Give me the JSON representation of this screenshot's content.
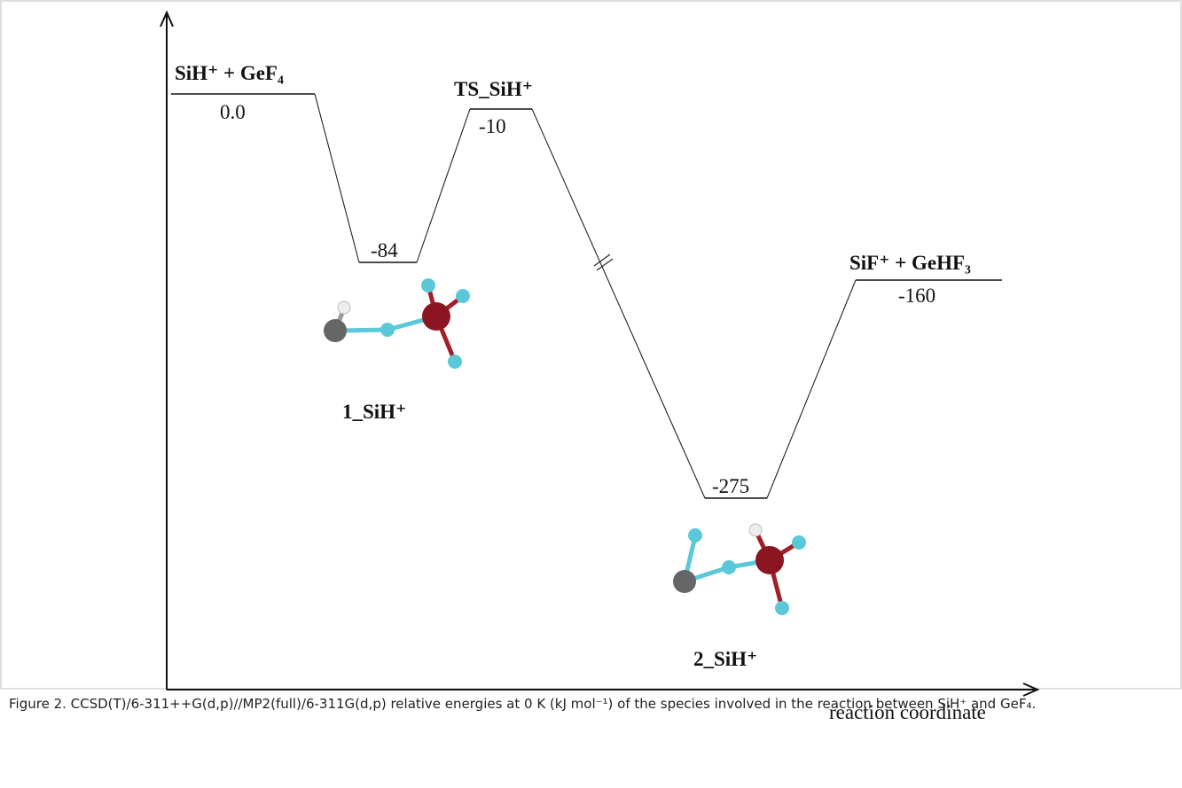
{
  "diagram": {
    "levels": [
      {
        "label": "SiH⁺ + GeF₄",
        "energy": "0.0"
      },
      {
        "label": "1_SiH⁺",
        "energy": "-84"
      },
      {
        "label": "TS_SiH⁺",
        "energy": "-10"
      },
      {
        "label": "2_SiH⁺",
        "energy": "-275"
      },
      {
        "label": "SiF⁺ + GeHF₃",
        "energy": "-160"
      }
    ],
    "x_axis_label": "reaction coordinate"
  },
  "caption": "Figure 2. CCSD(T)/6-311++G(d,p)//MP2(full)/6-311G(d,p) relative energies at 0 K (kJ mol⁻¹) of the species involved in the reaction between SiH⁺ and GeF₄."
}
